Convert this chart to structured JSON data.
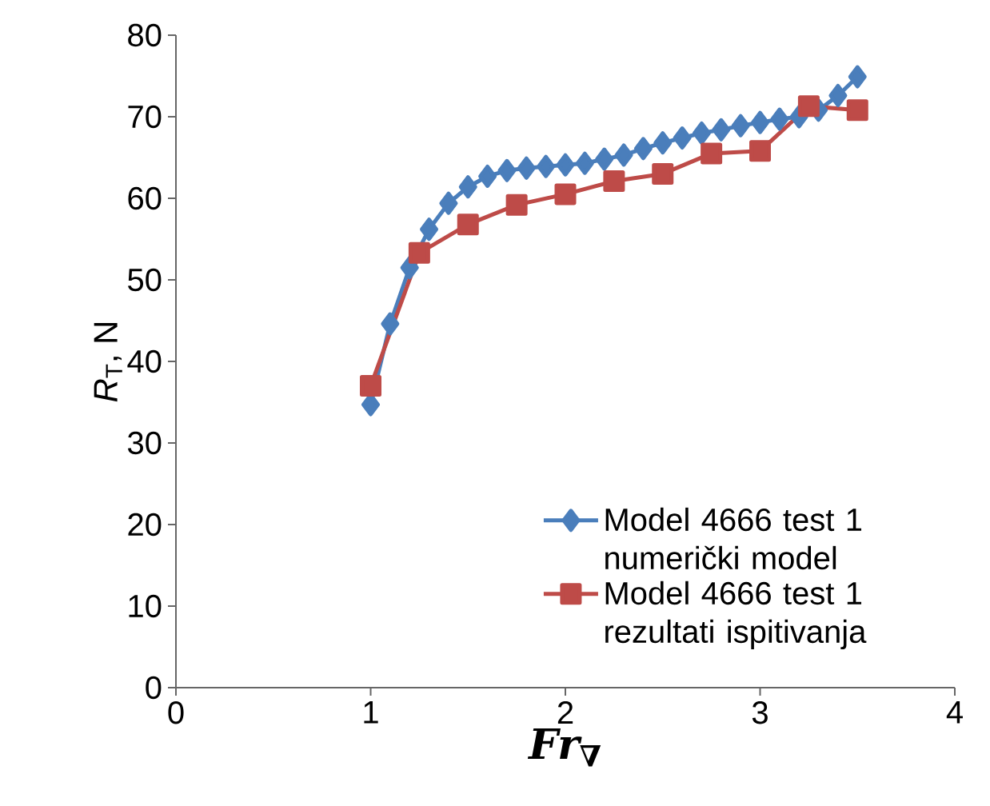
{
  "chart_data": {
    "type": "line",
    "xlabel": "Fr$_{∇}$",
    "ylabel": "*R*$_{T}$, N",
    "xlim": [
      0,
      4
    ],
    "xticks": [
      0,
      1,
      2,
      3,
      4
    ],
    "ylim": [
      0,
      80
    ],
    "yticks": [
      0,
      10,
      20,
      30,
      40,
      50,
      60,
      70,
      80
    ],
    "grid": false,
    "legend": "right",
    "series": [
      {
        "name": "Model 4666 test 1 numerički model",
        "color": "#4a7ebb",
        "marker": "diamond",
        "x": [
          1.0,
          1.1,
          1.2,
          1.3,
          1.4,
          1.5,
          1.6,
          1.7,
          1.8,
          1.9,
          2.0,
          2.1,
          2.2,
          2.3,
          2.4,
          2.5,
          2.6,
          2.7,
          2.8,
          2.9,
          3.0,
          3.1,
          3.2,
          3.3,
          3.4,
          3.5
        ],
        "values": [
          34.7,
          44.6,
          51.5,
          56.2,
          59.4,
          61.4,
          62.7,
          63.4,
          63.7,
          63.9,
          64.1,
          64.3,
          64.8,
          65.3,
          66.1,
          66.8,
          67.4,
          68.0,
          68.4,
          68.9,
          69.3,
          69.7,
          70.0,
          70.8,
          72.6,
          74.9
        ]
      },
      {
        "name": "Model 4666 test 1 rezultati ispitivanja",
        "color": "#be4b48",
        "marker": "square",
        "x": [
          1.0,
          1.25,
          1.5,
          1.75,
          2.0,
          2.25,
          2.5,
          2.75,
          3.0,
          3.25,
          3.5
        ],
        "values": [
          37.0,
          53.3,
          56.8,
          59.2,
          60.5,
          62.1,
          63.0,
          65.5,
          65.8,
          71.3,
          70.8
        ]
      }
    ]
  }
}
